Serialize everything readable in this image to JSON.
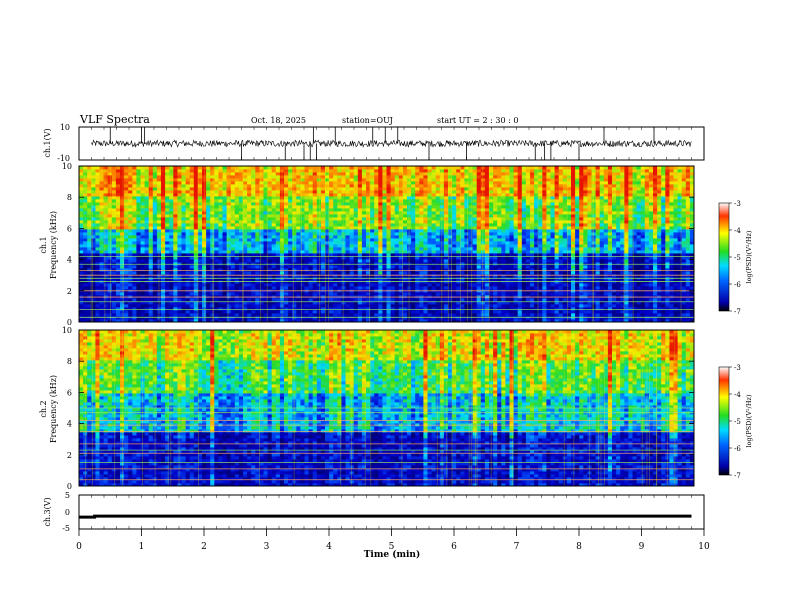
{
  "header": {
    "title": "VLF Spectra",
    "date": "Oct. 18, 2025",
    "station": "station=OUJ",
    "start": "start  UT =  2 : 30 : 0"
  },
  "chart_data": [
    {
      "type": "line",
      "id": "ch1-waveform",
      "ylabel": "ch.1(V)",
      "ylim": [
        -10,
        10
      ],
      "yticks": [
        "10",
        "-10"
      ],
      "x_range_min": [
        0,
        9.8
      ],
      "baseline_v": 0,
      "noise_amplitude_v": 2,
      "spikes_min": [
        0.5,
        1.0,
        1.05,
        2.6,
        3.3,
        3.6,
        3.7,
        3.75,
        3.8,
        4.1,
        4.7,
        4.9,
        5.1,
        5.6,
        6.2,
        7.3,
        7.45,
        7.55,
        8.0,
        8.4,
        9.2
      ]
    },
    {
      "type": "heatmap",
      "id": "ch1-spectrogram",
      "ylabel_top": "ch.1",
      "ylabel": "Frequency (kHz)",
      "ylim": [
        0,
        10
      ],
      "yticks": [
        "0",
        "2",
        "4",
        "6",
        "8",
        "10"
      ],
      "x_range_min": [
        0,
        9.8
      ],
      "description_bands_khz": [
        {
          "from": 0,
          "to": 4.5,
          "log_psd": -6.5
        },
        {
          "from": 4.5,
          "to": 6,
          "log_psd": -5.5
        },
        {
          "from": 6,
          "to": 8,
          "log_psd": -4.6
        },
        {
          "from": 8,
          "to": 10,
          "log_psd": -4.0
        }
      ],
      "narrowband_lines_khz": [
        0.3,
        0.8,
        1.3,
        1.6,
        2.0,
        2.6,
        2.8,
        3.0,
        3.3,
        3.7,
        4.2
      ]
    },
    {
      "type": "heatmap",
      "id": "ch2-spectrogram",
      "ylabel_top": "ch.2",
      "ylabel": "Frequency (kHz)",
      "ylim": [
        0,
        10
      ],
      "yticks": [
        "0",
        "2",
        "4",
        "6",
        "8",
        "10"
      ],
      "x_range_min": [
        0,
        9.8
      ],
      "description_bands_khz": [
        {
          "from": 0,
          "to": 3.5,
          "log_psd": -6.4
        },
        {
          "from": 3.5,
          "to": 6,
          "log_psd": -5.4
        },
        {
          "from": 6,
          "to": 8,
          "log_psd": -4.8
        },
        {
          "from": 8,
          "to": 10,
          "log_psd": -4.2
        }
      ],
      "narrowband_lines_khz": [
        0.4,
        1.1,
        1.5,
        2.1,
        2.3,
        2.7,
        3.5,
        3.9,
        4.2,
        4.7,
        5.0
      ]
    },
    {
      "type": "line",
      "id": "ch3-waveform",
      "ylabel": "ch.3(V)",
      "ylim": [
        -5,
        5
      ],
      "yticks": [
        "5",
        "0",
        "-5"
      ],
      "x": [
        0,
        0.25,
        0.25,
        9.8
      ],
      "y": [
        -1.5,
        -1.5,
        -1.2,
        -1.2
      ]
    }
  ],
  "x_axis": {
    "label": "Time (min)",
    "ticks": [
      "0",
      "1",
      "2",
      "3",
      "4",
      "5",
      "6",
      "7",
      "8",
      "9",
      "10"
    ],
    "range": [
      0,
      10
    ]
  },
  "colorbar": {
    "label": "log(PSD)(V²/Hz)",
    "ticks": [
      "-3",
      "-4",
      "-5",
      "-6",
      "-7"
    ],
    "range": [
      -7,
      -3
    ]
  },
  "colors": {
    "low": "#00008b",
    "mid_low": "#00bfff",
    "mid": "#22dd22",
    "mid_high": "#ffff00",
    "high": "#ff2200"
  }
}
